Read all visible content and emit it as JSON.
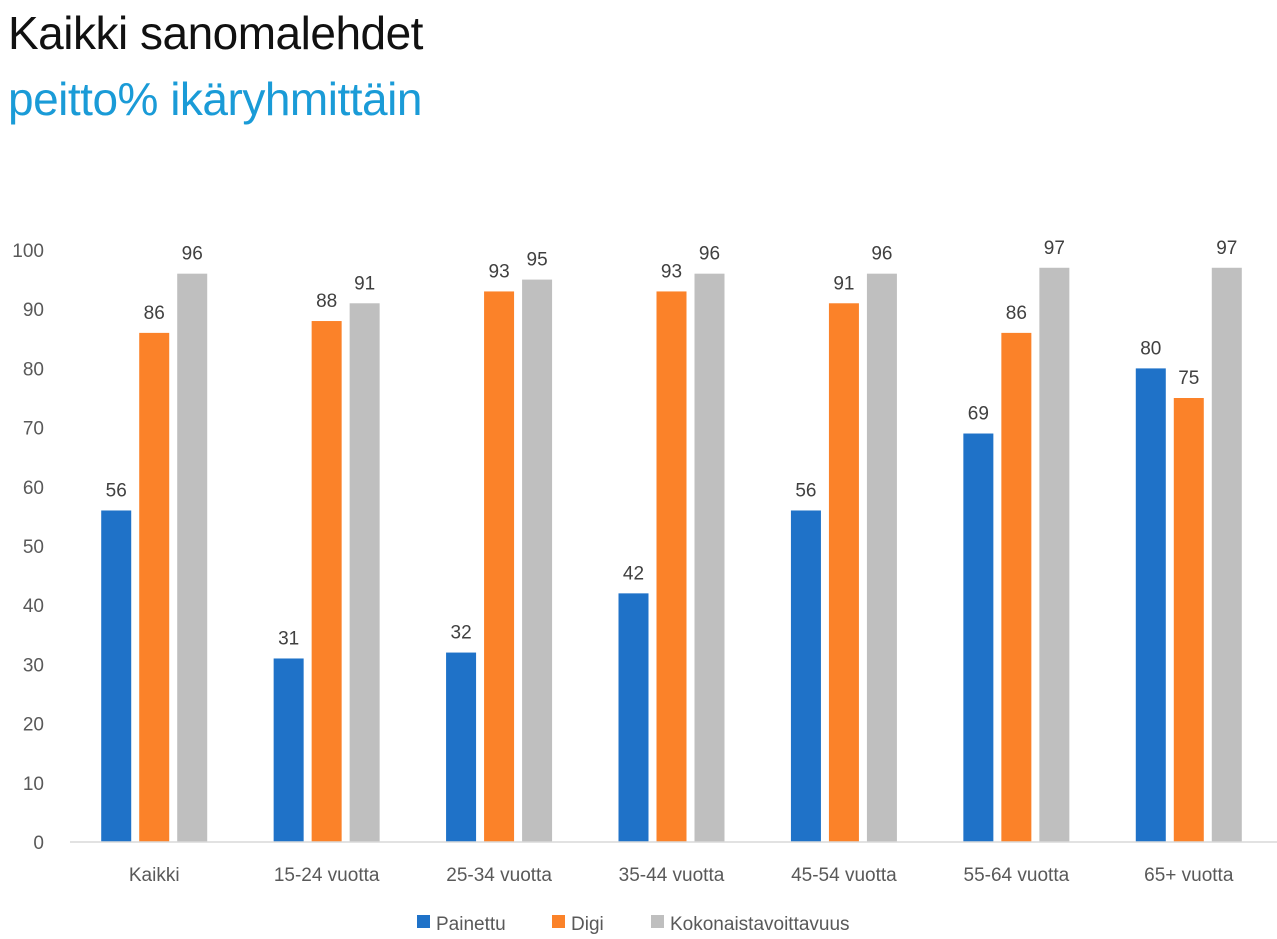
{
  "header": {
    "title": "Kaikki sanomalehdet",
    "subtitle": "peitto% ikäryhmittäin"
  },
  "chart_data": {
    "type": "bar",
    "categories": [
      "Kaikki",
      "15-24 vuotta",
      "25-34 vuotta",
      "35-44 vuotta",
      "45-54 vuotta",
      "55-64 vuotta",
      "65+ vuotta"
    ],
    "series": [
      {
        "name": "Painettu",
        "color": "#1f72c8",
        "values": [
          56,
          31,
          32,
          42,
          56,
          69,
          80
        ]
      },
      {
        "name": "Digi",
        "color": "#fb8229",
        "values": [
          86,
          88,
          93,
          93,
          91,
          86,
          75
        ]
      },
      {
        "name": "Kokonaistavoittavuus",
        "color": "#bfbfbf",
        "values": [
          96,
          91,
          95,
          96,
          96,
          97,
          97
        ]
      }
    ],
    "ylim": [
      0,
      100
    ],
    "yticks": [
      0,
      10,
      20,
      30,
      40,
      50,
      60,
      70,
      80,
      90,
      100
    ],
    "grid": false,
    "legend": "bottom",
    "data_labels": true
  }
}
